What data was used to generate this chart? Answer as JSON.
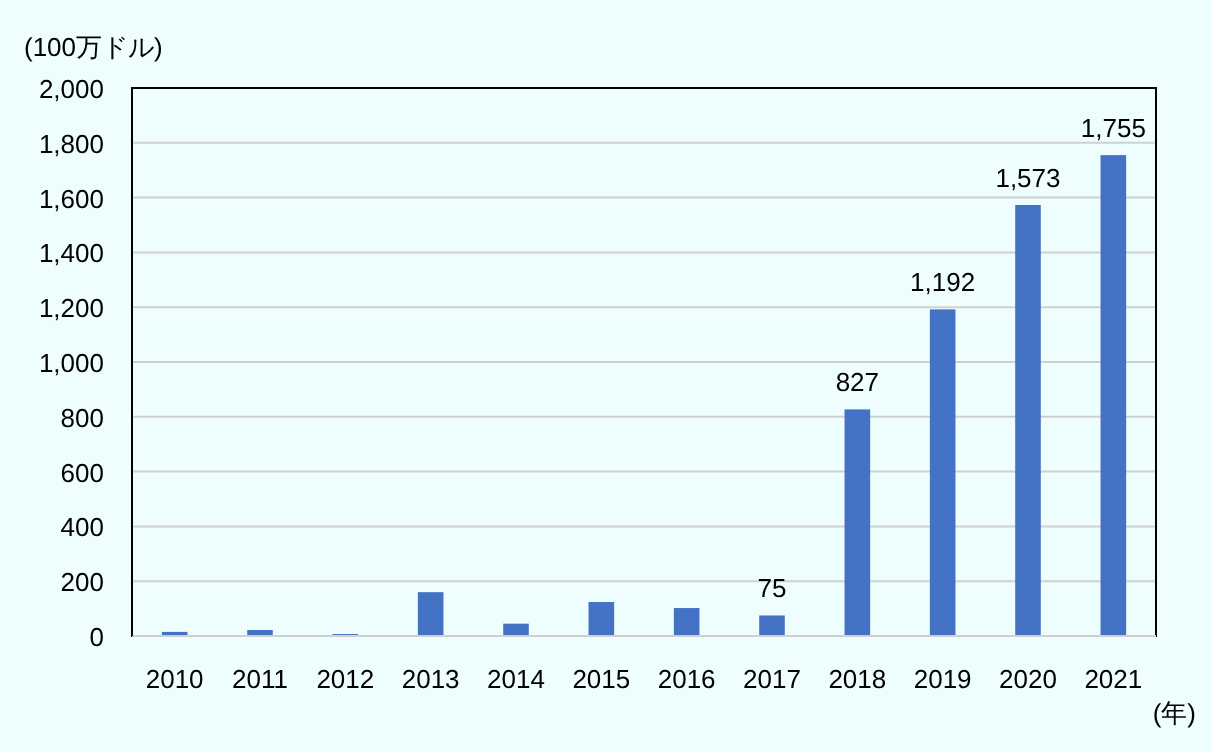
{
  "chart_data": {
    "type": "bar",
    "ylabel": "(100万ドル)",
    "xlabel": "(年)",
    "categories": [
      "2010",
      "2011",
      "2012",
      "2013",
      "2014",
      "2015",
      "2016",
      "2017",
      "2018",
      "2019",
      "2020",
      "2021"
    ],
    "values": [
      15,
      22,
      7,
      160,
      45,
      124,
      102,
      75,
      827,
      1192,
      1573,
      1755
    ],
    "value_labels": [
      null,
      null,
      null,
      null,
      null,
      null,
      null,
      "75",
      "827",
      "1,192",
      "1,573",
      "1,755"
    ],
    "color": "#4472c4",
    "ylim": [
      0,
      2000
    ],
    "yticks": [
      0,
      {
        "value": 200,
        "label": "200"
      },
      {
        "value": 400,
        "label": "400"
      },
      {
        "value": 600,
        "label": "600"
      },
      {
        "value": 800,
        "label": "800"
      },
      {
        "value": 1000,
        "label": "1,000"
      },
      {
        "value": 1200,
        "label": "1,200"
      },
      {
        "value": 1400,
        "label": "1,400"
      },
      {
        "value": 1600,
        "label": "1,600"
      },
      {
        "value": 1800,
        "label": "1,800"
      },
      {
        "value": 2000,
        "label": "2,000"
      }
    ],
    "grid": "y"
  }
}
